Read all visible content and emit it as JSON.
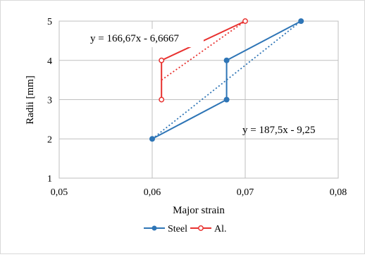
{
  "chart_data": {
    "type": "line",
    "xlabel": "Major strain",
    "ylabel": "Radii [mm]",
    "xlim": [
      0.05,
      0.08
    ],
    "ylim": [
      1,
      5
    ],
    "x_ticks": [
      0.05,
      0.06,
      0.07,
      0.08
    ],
    "x_tick_labels": [
      "0,05",
      "0,06",
      "0,07",
      "0,08"
    ],
    "y_ticks": [
      1,
      2,
      3,
      4,
      5
    ],
    "y_tick_labels": [
      "1",
      "2",
      "3",
      "4",
      "5"
    ],
    "grid": true,
    "legend_position": "bottom",
    "series": [
      {
        "name": "Steel",
        "color": "#2e75b6",
        "marker": "filled-circle",
        "points": [
          [
            0.06,
            2
          ],
          [
            0.068,
            3
          ],
          [
            0.068,
            4
          ],
          [
            0.076,
            5
          ]
        ],
        "trendline": {
          "slope": 187.5,
          "intercept": -9.25,
          "x_range": [
            0.06,
            0.076
          ],
          "equation": "y = 187,5x - 9,25"
        }
      },
      {
        "name": "Al.",
        "color": "#e8312f",
        "marker": "open-circle",
        "points": [
          [
            0.061,
            3
          ],
          [
            0.061,
            4
          ],
          [
            0.07,
            5
          ]
        ],
        "trendline": {
          "slope": 166.67,
          "intercept": -6.6667,
          "x_range": [
            0.061,
            0.07
          ],
          "equation": "y = 166,67x - 6,6667"
        }
      }
    ]
  }
}
